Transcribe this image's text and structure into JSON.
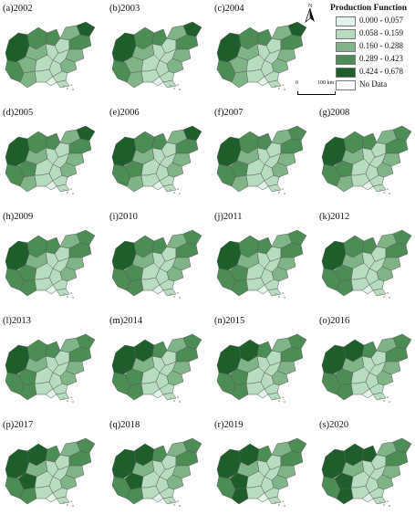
{
  "legend": {
    "title": "Production Function",
    "north_label": "N",
    "scale_zero": "0",
    "scale_label": "100 km",
    "classes": [
      {
        "label": "0.000 - 0.057",
        "color": "#e3f3ea"
      },
      {
        "label": "0.058 - 0.159",
        "color": "#b8dcbf"
      },
      {
        "label": "0.160 - 0.288",
        "color": "#7fb486"
      },
      {
        "label": "0.289 - 0.423",
        "color": "#4c8c55"
      },
      {
        "label": "0.424 - 0.678",
        "color": "#1e5e2a"
      },
      {
        "label": "No Data",
        "color": "#ffffff"
      }
    ]
  },
  "panels": [
    {
      "label": "(a)2002",
      "levels": [
        4,
        3,
        2,
        2,
        3,
        3,
        2,
        1,
        1,
        1,
        1,
        2,
        3,
        4,
        2,
        1,
        1,
        2,
        1,
        1,
        0
      ]
    },
    {
      "label": "(b)2003",
      "levels": [
        4,
        3,
        2,
        2,
        3,
        3,
        2,
        1,
        1,
        1,
        1,
        2,
        3,
        4,
        2,
        1,
        1,
        2,
        1,
        1,
        0
      ]
    },
    {
      "label": "(c)2004",
      "levels": [
        4,
        3,
        2,
        2,
        3,
        3,
        2,
        1,
        1,
        1,
        1,
        2,
        3,
        4,
        2,
        1,
        1,
        2,
        1,
        1,
        0
      ]
    },
    {
      "label": "(d)2005",
      "levels": [
        4,
        3,
        3,
        2,
        3,
        3,
        2,
        1,
        1,
        1,
        1,
        2,
        3,
        4,
        2,
        1,
        1,
        2,
        1,
        1,
        0
      ]
    },
    {
      "label": "(e)2006",
      "levels": [
        4,
        3,
        3,
        2,
        3,
        3,
        2,
        1,
        1,
        1,
        1,
        2,
        3,
        4,
        2,
        1,
        1,
        2,
        1,
        1,
        0
      ]
    },
    {
      "label": "(f)2007",
      "levels": [
        4,
        3,
        3,
        2,
        3,
        3,
        2,
        1,
        1,
        1,
        1,
        2,
        3,
        3,
        2,
        1,
        1,
        2,
        1,
        1,
        0
      ]
    },
    {
      "label": "(g)2008",
      "levels": [
        4,
        3,
        3,
        2,
        3,
        3,
        2,
        1,
        1,
        1,
        1,
        2,
        3,
        3,
        2,
        1,
        1,
        2,
        1,
        1,
        0
      ]
    },
    {
      "label": "(h)2009",
      "levels": [
        4,
        3,
        3,
        3,
        3,
        3,
        2,
        1,
        1,
        1,
        1,
        2,
        3,
        3,
        2,
        1,
        1,
        2,
        1,
        1,
        0
      ]
    },
    {
      "label": "(i)2010",
      "levels": [
        4,
        3,
        3,
        3,
        3,
        3,
        2,
        1,
        1,
        1,
        1,
        2,
        3,
        3,
        2,
        1,
        1,
        2,
        1,
        1,
        0
      ]
    },
    {
      "label": "(j)2011",
      "levels": [
        4,
        3,
        3,
        3,
        3,
        3,
        2,
        1,
        1,
        1,
        1,
        2,
        3,
        3,
        2,
        1,
        1,
        2,
        1,
        1,
        0
      ]
    },
    {
      "label": "(k)2012",
      "levels": [
        4,
        3,
        3,
        3,
        3,
        3,
        2,
        1,
        1,
        1,
        1,
        2,
        3,
        3,
        2,
        1,
        1,
        2,
        1,
        1,
        0
      ]
    },
    {
      "label": "(l)2013",
      "levels": [
        4,
        3,
        3,
        3,
        3,
        3,
        2,
        1,
        1,
        1,
        1,
        2,
        3,
        3,
        2,
        1,
        1,
        2,
        1,
        1,
        0
      ]
    },
    {
      "label": "(m)2014",
      "levels": [
        4,
        4,
        3,
        3,
        3,
        3,
        2,
        1,
        1,
        1,
        1,
        2,
        3,
        3,
        2,
        1,
        1,
        2,
        1,
        1,
        0
      ]
    },
    {
      "label": "(n)2015",
      "levels": [
        4,
        4,
        3,
        3,
        3,
        3,
        2,
        1,
        1,
        1,
        1,
        2,
        3,
        3,
        2,
        1,
        1,
        2,
        1,
        1,
        0
      ]
    },
    {
      "label": "(o)2016",
      "levels": [
        4,
        4,
        3,
        3,
        3,
        3,
        2,
        1,
        1,
        1,
        1,
        2,
        3,
        3,
        2,
        1,
        1,
        2,
        1,
        1,
        0
      ]
    },
    {
      "label": "(p)2017",
      "levels": [
        4,
        4,
        4,
        3,
        3,
        3,
        2,
        1,
        1,
        1,
        1,
        2,
        3,
        3,
        2,
        1,
        1,
        2,
        1,
        1,
        0
      ]
    },
    {
      "label": "(q)2018",
      "levels": [
        4,
        4,
        4,
        3,
        3,
        3,
        2,
        1,
        1,
        1,
        1,
        2,
        3,
        3,
        2,
        1,
        1,
        2,
        1,
        1,
        0
      ]
    },
    {
      "label": "(r)2019",
      "levels": [
        4,
        4,
        4,
        4,
        3,
        3,
        2,
        1,
        1,
        1,
        1,
        2,
        3,
        3,
        2,
        1,
        1,
        2,
        1,
        1,
        0
      ]
    },
    {
      "label": "(s)2020",
      "levels": [
        4,
        4,
        4,
        4,
        3,
        4,
        2,
        1,
        1,
        1,
        1,
        2,
        3,
        3,
        2,
        1,
        1,
        2,
        1,
        1,
        0
      ]
    }
  ]
}
